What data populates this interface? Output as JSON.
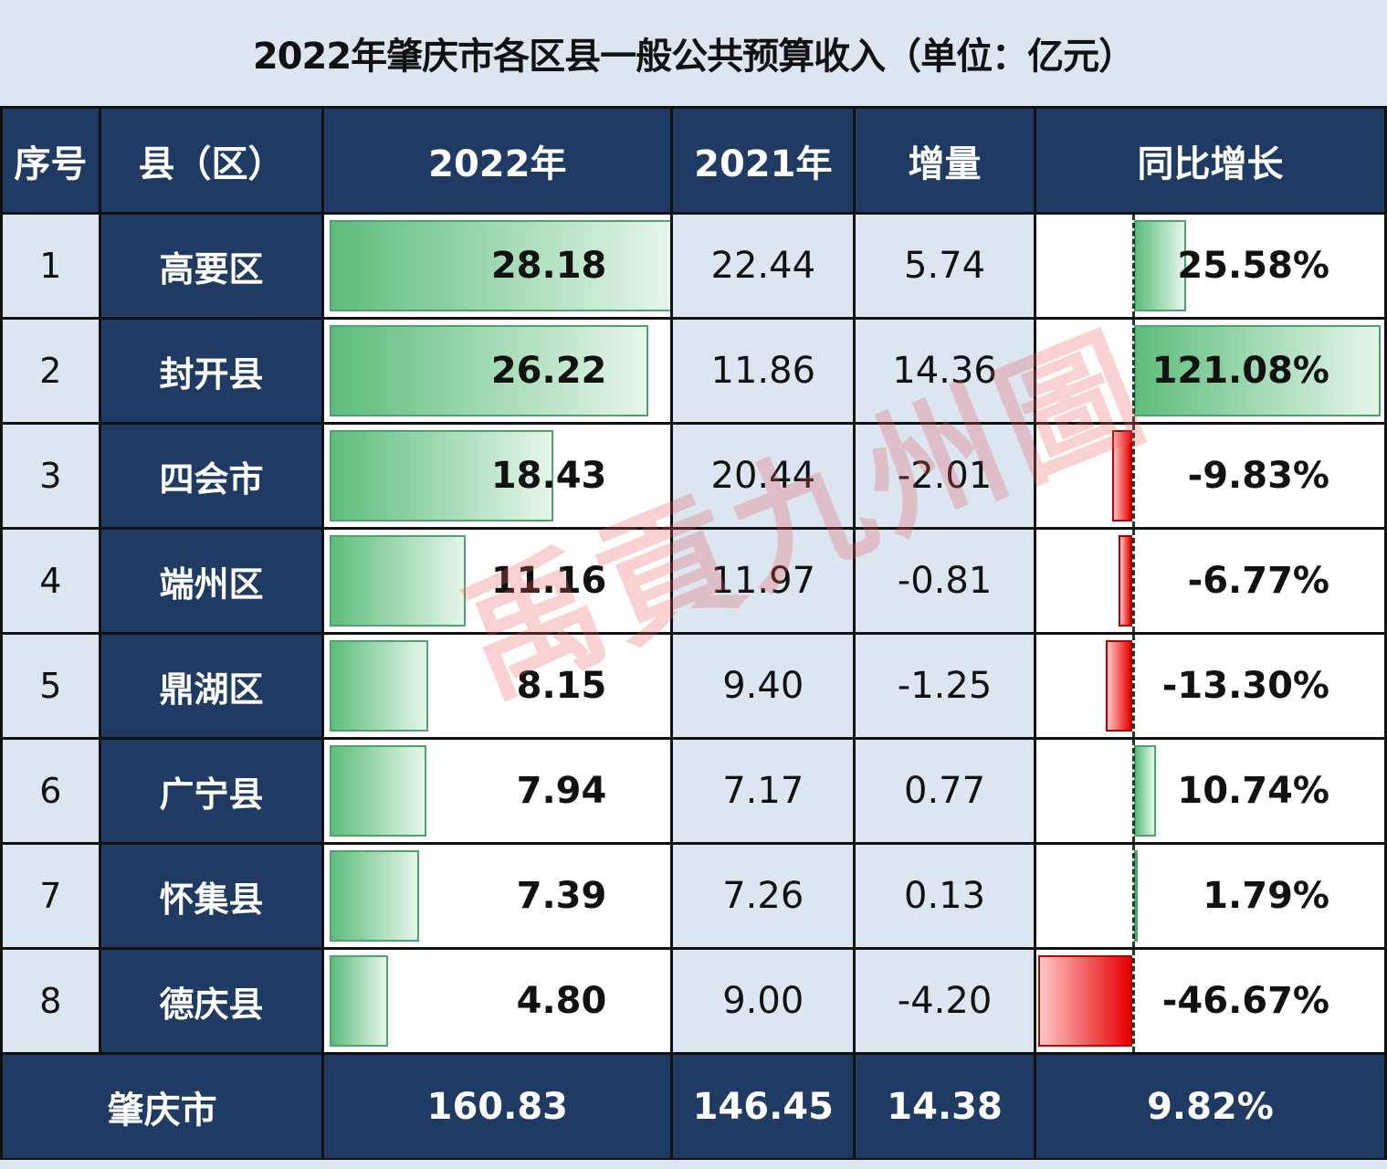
{
  "title": "2022年肇庆市各区县一般公共预算收入（单位：亿元）",
  "headers": {
    "index": "序号",
    "county": "县（区）",
    "y2022": "2022年",
    "y2021": "2021年",
    "delta": "增量",
    "yoy": "同比增长"
  },
  "rows": [
    {
      "index": "1",
      "county": "高要区",
      "y2022": "28.18",
      "y2021": "22.44",
      "delta": "5.74",
      "yoy": "25.58%"
    },
    {
      "index": "2",
      "county": "封开县",
      "y2022": "26.22",
      "y2021": "11.86",
      "delta": "14.36",
      "yoy": "121.08%"
    },
    {
      "index": "3",
      "county": "四会市",
      "y2022": "18.43",
      "y2021": "20.44",
      "delta": "-2.01",
      "yoy": "-9.83%"
    },
    {
      "index": "4",
      "county": "端州区",
      "y2022": "11.16",
      "y2021": "11.97",
      "delta": "-0.81",
      "yoy": "-6.77%"
    },
    {
      "index": "5",
      "county": "鼎湖区",
      "y2022": "8.15",
      "y2021": "9.40",
      "delta": "-1.25",
      "yoy": "-13.30%"
    },
    {
      "index": "6",
      "county": "广宁县",
      "y2022": "7.94",
      "y2021": "7.17",
      "delta": "0.77",
      "yoy": "10.74%"
    },
    {
      "index": "7",
      "county": "怀集县",
      "y2022": "7.39",
      "y2021": "7.26",
      "delta": "0.13",
      "yoy": "1.79%"
    },
    {
      "index": "8",
      "county": "德庆县",
      "y2022": "4.80",
      "y2021": "9.00",
      "delta": "-4.20",
      "yoy": "-46.67%"
    }
  ],
  "total": {
    "label": "肇庆市",
    "y2022": "160.83",
    "y2021": "146.45",
    "delta": "14.38",
    "yoy": "9.82%"
  },
  "watermark": "禹貢九州圖",
  "colors": {
    "navy": "#1f3b64",
    "light_blue": "#dce6f1",
    "bar_green": "#5dbd7c",
    "bar_red": "#e60000"
  },
  "chart_data": {
    "type": "table",
    "title": "2022年肇庆市各区县一般公共预算收入（单位：亿元）",
    "columns": [
      "序号",
      "县（区）",
      "2022年",
      "2021年",
      "增量",
      "同比增长"
    ],
    "categories": [
      "高要区",
      "封开县",
      "四会市",
      "端州区",
      "鼎湖区",
      "广宁县",
      "怀集县",
      "德庆县"
    ],
    "series": [
      {
        "name": "2022年",
        "values": [
          28.18,
          26.22,
          18.43,
          11.16,
          8.15,
          7.94,
          7.39,
          4.8
        ]
      },
      {
        "name": "2021年",
        "values": [
          22.44,
          11.86,
          20.44,
          11.97,
          9.4,
          7.17,
          7.26,
          9.0
        ]
      },
      {
        "name": "增量",
        "values": [
          5.74,
          14.36,
          -2.01,
          -0.81,
          -1.25,
          0.77,
          0.13,
          -4.2
        ]
      },
      {
        "name": "同比增长(%)",
        "values": [
          25.58,
          121.08,
          -9.83,
          -6.77,
          -13.3,
          10.74,
          1.79,
          -46.67
        ]
      }
    ],
    "total": {
      "name": "肇庆市",
      "y2022": 160.83,
      "y2021": 146.45,
      "delta": 14.38,
      "yoy_pct": 9.82
    },
    "data_bars": {
      "column_2022": "green gradient, max 28.18",
      "column_yoy": "green positive / red negative, axis-centered"
    }
  }
}
